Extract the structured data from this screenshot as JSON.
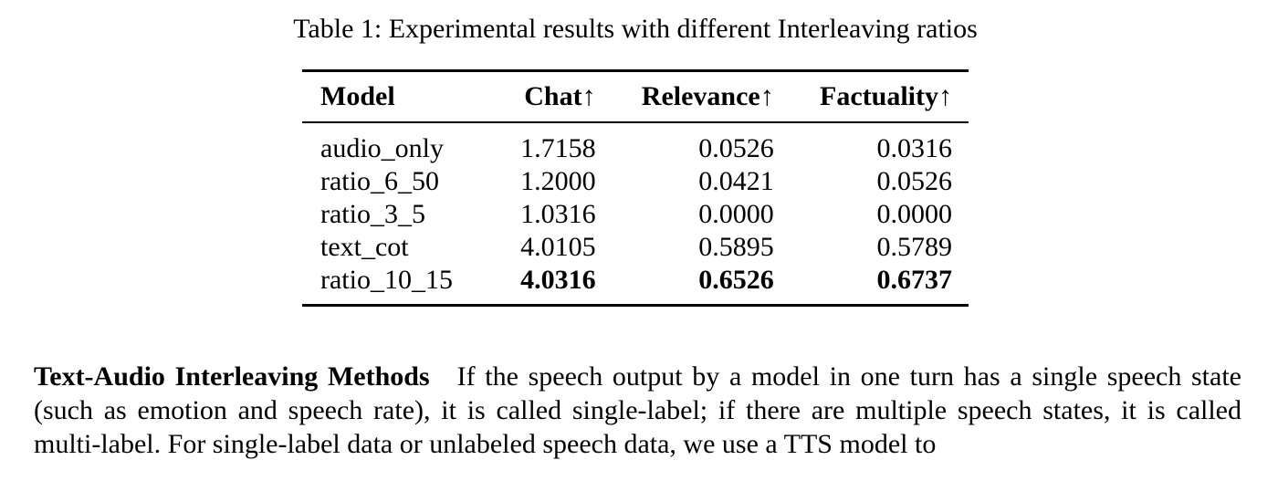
{
  "caption": "Table 1: Experimental results with different Interleaving ratios",
  "table": {
    "headers": [
      "Model",
      "Chat↑",
      "Relevance↑",
      "Factuality↑"
    ],
    "rows": [
      {
        "model": "audio_only",
        "chat": "1.7158",
        "relevance": "0.0526",
        "factuality": "0.0316"
      },
      {
        "model": "ratio_6_50",
        "chat": "1.2000",
        "relevance": "0.0421",
        "factuality": "0.0526"
      },
      {
        "model": "ratio_3_5",
        "chat": "1.0316",
        "relevance": "0.0000",
        "factuality": "0.0000"
      },
      {
        "model": "text_cot",
        "chat": "4.0105",
        "relevance": "0.5895",
        "factuality": "0.5789"
      },
      {
        "model": "ratio_10_15",
        "chat": "4.0316",
        "relevance": "0.6526",
        "factuality": "0.6737"
      }
    ]
  },
  "paragraph": {
    "heading": "Text-Audio Interleaving Methods",
    "body": "If the speech output by a model in one turn has a single speech state (such as emotion and speech rate), it is called single-label; if there are multiple speech states, it is called multi-label.  For single-label data or unlabeled speech data, we use a TTS model to"
  }
}
